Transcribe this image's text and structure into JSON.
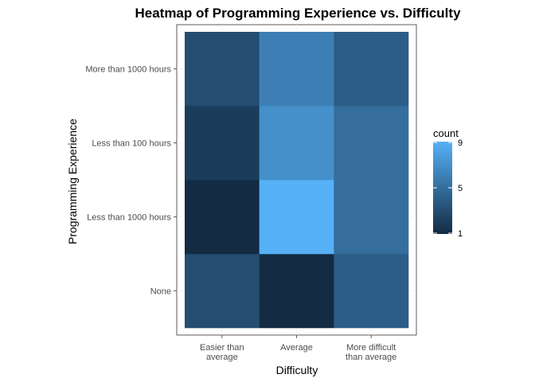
{
  "chart_data": {
    "type": "heatmap",
    "title": "Heatmap of Programming Experience vs. Difficulty",
    "xlabel": "Difficulty",
    "ylabel": "Programming Experience",
    "x_categories": [
      [
        "Easier than",
        "average"
      ],
      [
        "Average"
      ],
      [
        "More difficult",
        "than average"
      ]
    ],
    "y_categories": [
      "None",
      "Less than 1000 hours",
      "Less than 100 hours",
      "More than 1000 hours"
    ],
    "values": [
      [
        3,
        1,
        4
      ],
      [
        1,
        9,
        5
      ],
      [
        2,
        7,
        5
      ],
      [
        3,
        6,
        4
      ]
    ],
    "legend": {
      "title": "count",
      "ticks": [
        1,
        5,
        9
      ],
      "min": 1,
      "max": 9,
      "low_color": "#132b43",
      "high_color": "#56b1f7",
      "placement": "right"
    },
    "grid": true
  }
}
